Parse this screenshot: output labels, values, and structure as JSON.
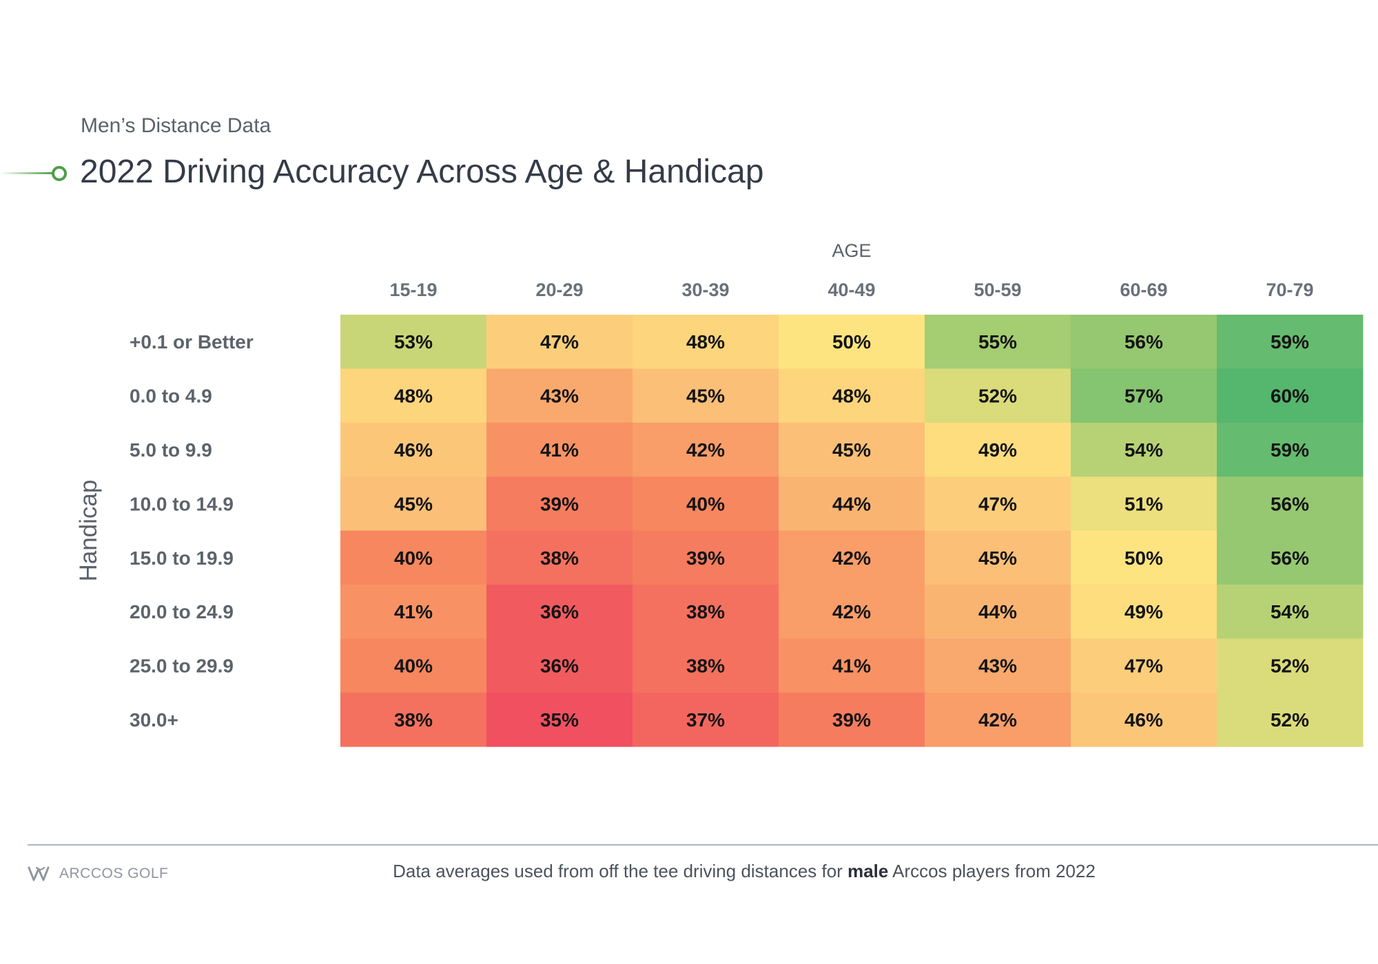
{
  "header": {
    "subtitle": "Men’s Distance Data",
    "title": "2022 Driving Accuracy Across Age & Handicap"
  },
  "chart_data": {
    "type": "heatmap",
    "title": "2022 Driving Accuracy Across Age & Handicap",
    "subtitle": "Men’s Distance Data",
    "xlabel": "AGE",
    "ylabel": "Handicap",
    "x_categories": [
      "15-19",
      "20-29",
      "30-39",
      "40-49",
      "50-59",
      "60-69",
      "70-79"
    ],
    "y_categories": [
      "+0.1 or Better",
      "0.0 to 4.9",
      "5.0 to 9.9",
      "10.0 to 14.9",
      "15.0 to 19.9",
      "20.0 to 24.9",
      "25.0 to 29.9",
      "30.0+"
    ],
    "values": [
      [
        53,
        47,
        48,
        50,
        55,
        56,
        59
      ],
      [
        48,
        43,
        45,
        48,
        52,
        57,
        60
      ],
      [
        46,
        41,
        42,
        45,
        49,
        54,
        59
      ],
      [
        45,
        39,
        40,
        44,
        47,
        51,
        56
      ],
      [
        40,
        38,
        39,
        42,
        45,
        50,
        56
      ],
      [
        41,
        36,
        38,
        42,
        44,
        49,
        54
      ],
      [
        40,
        36,
        38,
        41,
        43,
        47,
        52
      ],
      [
        38,
        35,
        37,
        39,
        42,
        46,
        52
      ]
    ],
    "value_suffix": "%",
    "color_scale": [
      "#f0505f",
      "#f7875f",
      "#fbbf77",
      "#fee480",
      "#a5cd72",
      "#55b66e"
    ]
  },
  "footer": {
    "logo_text": "ARCCOS GOLF",
    "footnote_before": "Data averages used from off the tee driving distances for ",
    "footnote_bold": "male",
    "footnote_after": " Arccos players from 2022"
  }
}
